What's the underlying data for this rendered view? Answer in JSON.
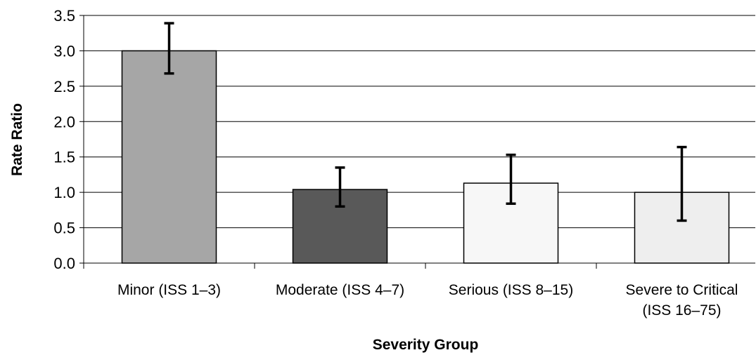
{
  "chart_data": {
    "type": "bar",
    "title": "",
    "xlabel": "Severity Group",
    "ylabel": "Rate Ratio",
    "ylim": [
      0,
      3.5
    ],
    "yticks": [
      "0.0",
      "0.5",
      "1.0",
      "1.5",
      "2.0",
      "2.5",
      "3.0",
      "3.5"
    ],
    "grid": true,
    "categories": [
      [
        "Minor (ISS 1–3)"
      ],
      [
        "Moderate (ISS 4–7)"
      ],
      [
        "Serious (ISS 8–15)"
      ],
      [
        "Severe to Critical",
        "(ISS 16–75)"
      ]
    ],
    "values": [
      3.0,
      1.04,
      1.13,
      1.0
    ],
    "error_low": [
      2.68,
      0.8,
      0.84,
      0.6
    ],
    "error_high": [
      3.39,
      1.35,
      1.53,
      1.64
    ],
    "colors": [
      "#a6a6a6",
      "#595959",
      "#f7f7f7",
      "#eeeeee"
    ]
  }
}
